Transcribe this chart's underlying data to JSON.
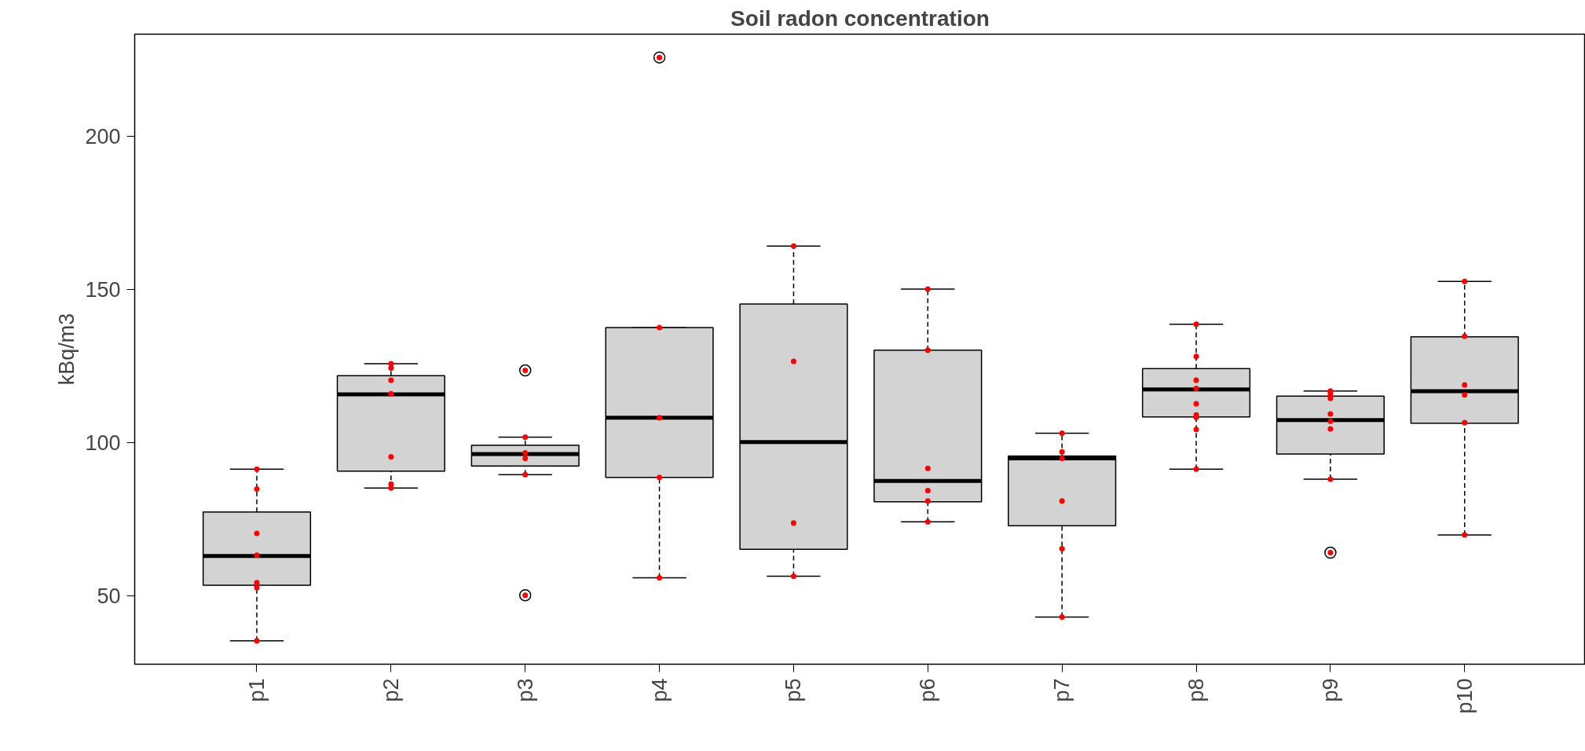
{
  "chart_data": {
    "type": "box",
    "title": "Soil radon concentration",
    "ylabel": "kBq/m3",
    "categories": [
      "p1",
      "p2",
      "p3",
      "p4",
      "p5",
      "p6",
      "p7",
      "p8",
      "p9",
      "p10"
    ],
    "ylim": [
      27.6,
      233.3
    ],
    "yticks": [
      50,
      100,
      150,
      200
    ],
    "grid": false,
    "series": [
      {
        "type": "box",
        "color": "#d3d3d3",
        "boxes": [
          {
            "low": 35.2,
            "q1": 53.4,
            "median": 62.9,
            "q3": 77.3,
            "high": 91.3
          },
          {
            "low": 85.1,
            "q1": 90.6,
            "median": 115.7,
            "q3": 121.8,
            "high": 125.7
          },
          {
            "low": 89.5,
            "q1": 92.3,
            "median": 96.2,
            "q3": 99.1,
            "high": 101.7
          },
          {
            "low": 55.8,
            "q1": 88.6,
            "median": 108.1,
            "q3": 137.5,
            "high": 137.5
          },
          {
            "low": 56.3,
            "q1": 65.1,
            "median": 100.1,
            "q3": 145.2,
            "high": 164.1
          },
          {
            "low": 74.1,
            "q1": 80.6,
            "median": 87.4,
            "q3": 130.1,
            "high": 150.1
          },
          {
            "low": 43.0,
            "q1": 72.8,
            "median": 94.8,
            "q3": 95.6,
            "high": 103.0
          },
          {
            "low": 91.3,
            "q1": 108.3,
            "median": 117.3,
            "q3": 124.1,
            "high": 138.6
          },
          {
            "low": 88.0,
            "q1": 96.2,
            "median": 107.3,
            "q3": 115.1,
            "high": 116.8
          },
          {
            "low": 69.8,
            "q1": 106.3,
            "median": 116.7,
            "q3": 134.5,
            "high": 152.6
          }
        ]
      },
      {
        "type": "scatter",
        "color": "#ff0000",
        "x": [
          "p1",
          "p1",
          "p1",
          "p1",
          "p1",
          "p1",
          "p1",
          "p2",
          "p2",
          "p2",
          "p2",
          "p2",
          "p2",
          "p2",
          "p3",
          "p3",
          "p3",
          "p3",
          "p3",
          "p3",
          "p4",
          "p4",
          "p4",
          "p4",
          "p4",
          "p5",
          "p5",
          "p5",
          "p5",
          "p6",
          "p6",
          "p6",
          "p6",
          "p6",
          "p6",
          "p7",
          "p7",
          "p7",
          "p7",
          "p7",
          "p7",
          "p8",
          "p8",
          "p8",
          "p8",
          "p8",
          "p8",
          "p8",
          "p8",
          "p8",
          "p9",
          "p9",
          "p9",
          "p9",
          "p9",
          "p9",
          "p9",
          "p9",
          "p9",
          "p10",
          "p10",
          "p10",
          "p10",
          "p10",
          "p10"
        ],
        "values": [
          91.3,
          84.8,
          70.3,
          63.2,
          54.2,
          52.6,
          35.2,
          125.7,
          124.3,
          120.3,
          115.9,
          95.3,
          86.4,
          85.1,
          123.5,
          101.7,
          96.6,
          94.8,
          89.5,
          50.1,
          225.7,
          137.5,
          108.1,
          88.6,
          55.8,
          164.1,
          126.5,
          73.7,
          56.3,
          150.1,
          130.1,
          91.5,
          84.3,
          80.9,
          74.1,
          103.0,
          96.9,
          94.8,
          80.9,
          65.3,
          43.0,
          138.6,
          128.1,
          120.3,
          117.6,
          112.6,
          109.0,
          108.2,
          104.2,
          91.3,
          116.8,
          116.3,
          115.2,
          114.4,
          109.3,
          106.9,
          104.4,
          88.0,
          64.0,
          152.6,
          134.7,
          118.8,
          115.5,
          106.5,
          69.8
        ]
      }
    ]
  }
}
